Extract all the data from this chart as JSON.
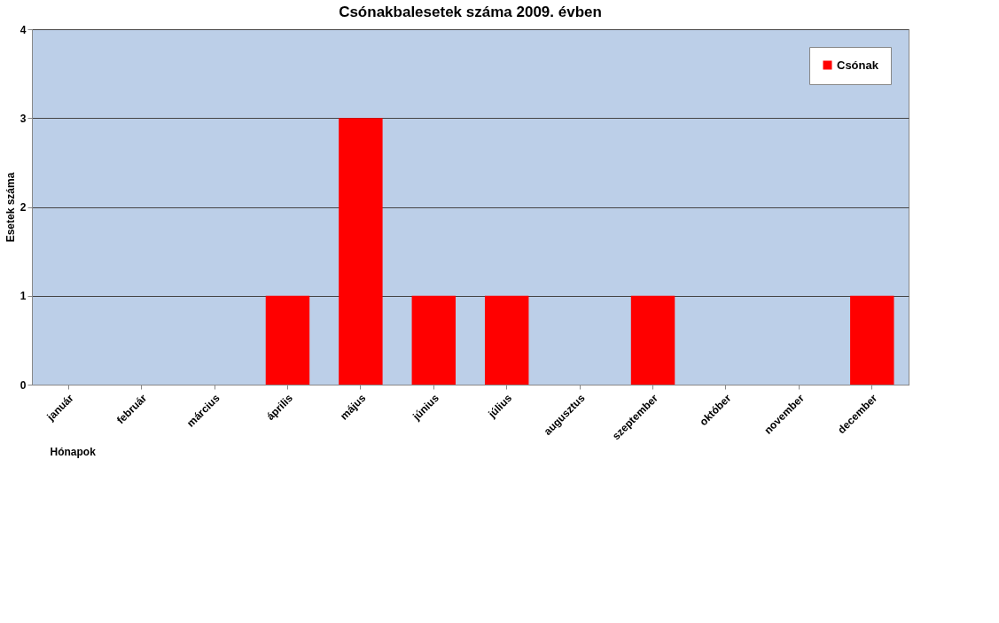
{
  "chart_data": {
    "type": "bar",
    "title": "Csónakbalesetek száma 2009. évben",
    "xlabel": "Hónapok",
    "ylabel": "Esetek száma",
    "categories": [
      "január",
      "február",
      "március",
      "április",
      "május",
      "június",
      "július",
      "augusztus",
      "szeptember",
      "október",
      "november",
      "december"
    ],
    "series": [
      {
        "name": "Csónak",
        "color": "#ff0000",
        "values": [
          0,
          0,
          0,
          1,
          3,
          1,
          1,
          0,
          1,
          0,
          0,
          1
        ]
      }
    ],
    "ylim": [
      0,
      4
    ],
    "yticks": [
      0,
      1,
      2,
      3,
      4
    ],
    "grid": "y",
    "legend": "top right"
  }
}
